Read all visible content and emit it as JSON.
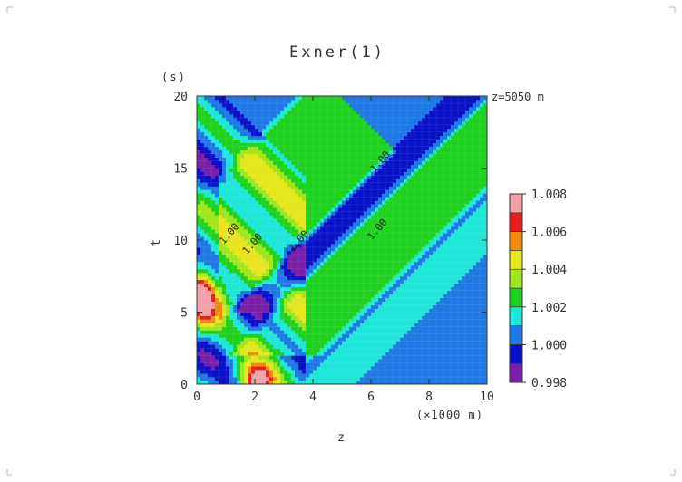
{
  "chart_data": {
    "type": "heatmap",
    "title": "Exner(1)",
    "annotation": "z=5050 m",
    "xlabel": "z",
    "xunit": "(×1000 m)",
    "ylabel": "t",
    "yunit": "(s)",
    "xlim": [
      0,
      10
    ],
    "ylim": [
      0,
      20
    ],
    "x_ticks": [
      0,
      2,
      4,
      6,
      8,
      10
    ],
    "y_ticks": [
      0,
      5,
      10,
      15,
      20
    ],
    "contour_labels": [
      {
        "text": "1.00",
        "z": 1.2,
        "t": 10.3,
        "rotate": -49
      },
      {
        "text": "1.00",
        "z": 2.0,
        "t": 9.6,
        "rotate": -49
      },
      {
        "text": "1.00",
        "z": 3.6,
        "t": 9.8,
        "rotate": -49
      },
      {
        "text": "1.00",
        "z": 6.4,
        "t": 15.3,
        "rotate": -49
      },
      {
        "text": "1.00",
        "z": 6.3,
        "t": 10.6,
        "rotate": -49
      }
    ],
    "colorbar": {
      "levels": [
        0.998,
        1.0,
        1.002,
        1.004,
        1.006,
        1.008
      ],
      "tick_labels": [
        "0.998",
        "1.000",
        "1.002",
        "1.004",
        "1.006",
        "1.008"
      ],
      "bins": [
        {
          "from": 0.998,
          "to": 0.999,
          "color": "#7a1fa8"
        },
        {
          "from": 0.999,
          "to": 1.0,
          "color": "#0a12c8"
        },
        {
          "from": 1.0,
          "to": 1.001,
          "color": "#1f78e6"
        },
        {
          "from": 1.001,
          "to": 1.002,
          "color": "#1ee6d8"
        },
        {
          "from": 1.002,
          "to": 1.003,
          "color": "#1fd21f"
        },
        {
          "from": 1.003,
          "to": 1.004,
          "color": "#a0e61e"
        },
        {
          "from": 1.004,
          "to": 1.005,
          "color": "#e6e61e"
        },
        {
          "from": 1.005,
          "to": 1.006,
          "color": "#f08c10"
        },
        {
          "from": 1.006,
          "to": 1.007,
          "color": "#e61e1e"
        },
        {
          "from": 1.007,
          "to": 1.008,
          "color": "#f5a0a8"
        }
      ]
    }
  }
}
